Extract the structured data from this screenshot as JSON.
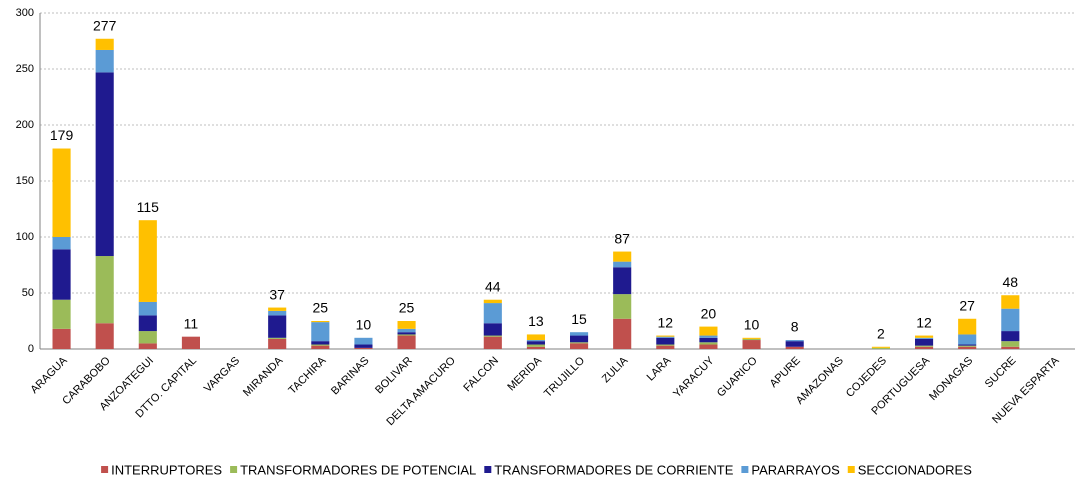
{
  "chart_data": {
    "type": "stacked_bar",
    "categories": [
      "ARAGUA",
      "CARABOBO",
      "ANZOATEGUI",
      "DTTO. CAPITAL",
      "VARGAS",
      "MIRANDA",
      "TACHIRA",
      "BARINAS",
      "BOLIVAR",
      "DELTA AMACURO",
      "FALCON",
      "MERIDA",
      "TRUJILLO",
      "ZULIA",
      "LARA",
      "YARACUY",
      "GUARICO",
      "APURE",
      "AMAZONAS",
      "COJEDES",
      "PORTUGUESA",
      "MONAGAS",
      "SUCRE",
      "NUEVA ESPARTA"
    ],
    "series": [
      {
        "name": "INTERRUPTORES",
        "color": "#c0504d",
        "values": [
          18,
          23,
          5,
          11,
          0,
          9,
          3,
          1,
          12,
          0,
          11,
          2,
          5,
          27,
          3,
          4,
          8,
          2,
          0,
          0,
          2,
          2,
          2,
          0
        ]
      },
      {
        "name": "TRANSFORMADORES DE POTENCIAL",
        "color": "#9bbb59",
        "values": [
          26,
          60,
          11,
          0,
          0,
          1,
          1,
          0,
          1,
          0,
          1,
          2,
          1,
          22,
          1,
          2,
          1,
          0,
          0,
          1,
          1,
          1,
          5,
          0
        ]
      },
      {
        "name": "TRANSFORMADORES DE CORRIENTE",
        "color": "#1f1a8f",
        "values": [
          45,
          164,
          14,
          0,
          0,
          20,
          3,
          3,
          2,
          0,
          11,
          3,
          6,
          24,
          6,
          4,
          0,
          5,
          0,
          0,
          6,
          1,
          9,
          0
        ]
      },
      {
        "name": "PARARRAYOS",
        "color": "#5b9bd5",
        "values": [
          11,
          20,
          12,
          0,
          0,
          4,
          17,
          6,
          3,
          0,
          18,
          1,
          3,
          5,
          1,
          2,
          0,
          1,
          0,
          0,
          1,
          9,
          20,
          0
        ]
      },
      {
        "name": "SECCIONADORES",
        "color": "#ffc000",
        "values": [
          79,
          10,
          73,
          0,
          0,
          3,
          1,
          0,
          7,
          0,
          3,
          5,
          0,
          9,
          1,
          8,
          1,
          0,
          0,
          1,
          2,
          14,
          12,
          0
        ]
      }
    ],
    "totals": [
      179,
      277,
      115,
      11,
      null,
      37,
      25,
      10,
      25,
      null,
      44,
      13,
      15,
      87,
      12,
      20,
      10,
      8,
      null,
      2,
      12,
      27,
      48,
      null
    ],
    "ylim": [
      0,
      300
    ],
    "yticks": [
      0,
      50,
      100,
      150,
      200,
      250,
      300
    ],
    "grid": true,
    "legend": "bottom"
  }
}
